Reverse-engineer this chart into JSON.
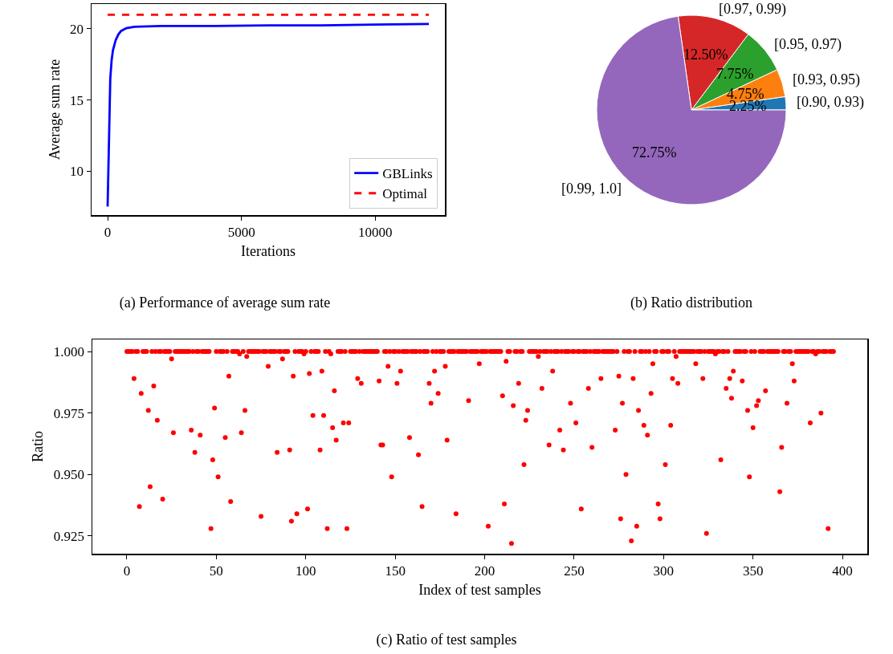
{
  "chart_data": [
    {
      "type": "line",
      "title": "(a) Performance of average sum rate",
      "xlabel": "Iterations",
      "ylabel": "Average sum rate",
      "xlim": [
        -600,
        12600
      ],
      "ylim": [
        6.9,
        21.75
      ],
      "xticks": [
        0,
        5000,
        10000
      ],
      "yticks": [
        10,
        15,
        20
      ],
      "legend": "bottom right",
      "series": [
        {
          "name": "GBLinks",
          "color": "#0000ff",
          "line_style": "solid",
          "x": [
            0,
            50,
            100,
            150,
            200,
            300,
            400,
            500,
            700,
            1000,
            2000,
            4000,
            6000,
            8000,
            10000,
            12000
          ],
          "values": [
            7.5,
            12,
            16.5,
            17.8,
            18.5,
            19.2,
            19.6,
            19.85,
            20.05,
            20.15,
            20.2,
            20.2,
            20.25,
            20.25,
            20.3,
            20.35
          ]
        },
        {
          "name": "Optimal",
          "color": "#ff0000",
          "line_style": "dashed",
          "x": [
            0,
            12000
          ],
          "values": [
            21,
            21
          ]
        }
      ]
    },
    {
      "type": "pie",
      "title": "(b) Ratio distribution",
      "categories": [
        "[0.90, 0.93)",
        "[0.93, 0.95)",
        "[0.95, 0.97)",
        "[0.97, 0.99)",
        "[0.99, 1.0]"
      ],
      "values": [
        2.25,
        4.75,
        7.75,
        12.5,
        72.75
      ],
      "value_labels": [
        "2.25%",
        "4.75%",
        "7.75%",
        "12.50%",
        "72.75%"
      ],
      "colors": [
        "#1f77b4",
        "#ff7f0e",
        "#2ca02c",
        "#d62728",
        "#9467bd"
      ]
    },
    {
      "type": "scatter",
      "title": "(c) Ratio of test samples",
      "xlabel": "Index of test samples",
      "ylabel": "Ratio",
      "xlim": [
        -19.3,
        413.9
      ],
      "ylim": [
        0.9178,
        1.0049
      ],
      "xticks": [
        0,
        50,
        100,
        150,
        200,
        250,
        300,
        350,
        400
      ],
      "yticks": [
        0.925,
        {
          "value": 0.95,
          "label": "0.950"
        },
        0.975,
        {
          "value": 1,
          "label": "1.000"
        }
      ],
      "marker": "circle",
      "color": "#ff0000",
      "x": [
        0,
        1,
        2,
        3,
        4,
        5,
        6,
        7,
        8,
        9,
        10,
        11,
        12,
        13,
        14,
        15,
        16,
        17,
        18,
        19,
        20,
        21,
        22,
        23,
        24,
        25,
        26,
        27,
        28,
        29,
        30,
        31,
        32,
        33,
        34,
        35,
        36,
        37,
        38,
        39,
        40,
        41,
        42,
        43,
        44,
        45,
        46,
        47,
        48,
        49,
        50,
        51,
        52,
        53,
        54,
        55,
        56,
        57,
        58,
        59,
        60,
        61,
        62,
        63,
        64,
        65,
        66,
        67,
        68,
        69,
        70,
        71,
        72,
        73,
        74,
        75,
        76,
        77,
        78,
        79,
        80,
        81,
        82,
        83,
        84,
        85,
        86,
        87,
        88,
        89,
        90,
        91,
        92,
        93,
        94,
        95,
        96,
        97,
        98,
        99,
        100,
        101,
        102,
        103,
        104,
        105,
        106,
        107,
        108,
        109,
        110,
        111,
        112,
        113,
        114,
        115,
        116,
        117,
        118,
        119,
        120,
        121,
        122,
        123,
        124,
        125,
        126,
        127,
        128,
        129,
        130,
        131,
        132,
        133,
        134,
        135,
        136,
        137,
        138,
        139,
        140,
        141,
        142,
        143,
        144,
        145,
        146,
        147,
        148,
        149,
        150,
        151,
        152,
        153,
        154,
        155,
        156,
        157,
        158,
        159,
        160,
        161,
        162,
        163,
        164,
        165,
        166,
        167,
        168,
        169,
        170,
        171,
        172,
        173,
        174,
        175,
        176,
        177,
        178,
        179,
        180,
        181,
        182,
        183,
        184,
        185,
        186,
        187,
        188,
        189,
        190,
        191,
        192,
        193,
        194,
        195,
        196,
        197,
        198,
        199,
        200,
        201,
        202,
        203,
        204,
        205,
        206,
        207,
        208,
        209,
        210,
        211,
        212,
        213,
        214,
        215,
        216,
        217,
        218,
        219,
        220,
        221,
        222,
        223,
        224,
        225,
        226,
        227,
        228,
        229,
        230,
        231,
        232,
        233,
        234,
        235,
        236,
        237,
        238,
        239,
        240,
        241,
        242,
        243,
        244,
        245,
        246,
        247,
        248,
        249,
        250,
        251,
        252,
        253,
        254,
        255,
        256,
        257,
        258,
        259,
        260,
        261,
        262,
        263,
        264,
        265,
        266,
        267,
        268,
        269,
        270,
        271,
        272,
        273,
        274,
        275,
        276,
        277,
        278,
        279,
        280,
        281,
        282,
        283,
        284,
        285,
        286,
        287,
        288,
        289,
        290,
        291,
        292,
        293,
        294,
        295,
        296,
        297,
        298,
        299,
        300,
        301,
        302,
        303,
        304,
        305,
        306,
        307,
        308,
        309,
        310,
        311,
        312,
        313,
        314,
        315,
        316,
        317,
        318,
        319,
        320,
        321,
        322,
        323,
        324,
        325,
        326,
        327,
        328,
        329,
        330,
        331,
        332,
        333,
        334,
        335,
        336,
        337,
        338,
        339,
        340,
        341,
        342,
        343,
        344,
        345,
        346,
        347,
        348,
        349,
        350,
        351,
        352,
        353,
        354,
        355,
        356,
        357,
        358,
        359,
        360,
        361,
        362,
        363,
        364,
        365,
        366,
        367,
        368,
        369,
        370,
        371,
        372,
        373,
        374,
        375,
        376,
        377,
        378,
        379,
        380,
        381,
        382,
        383,
        384,
        385,
        386,
        387,
        388,
        389,
        390,
        391,
        392,
        393,
        394,
        395
      ],
      "values": [
        1,
        1,
        1,
        1,
        0.989,
        1,
        1,
        0.937,
        0.983,
        1,
        1,
        1,
        0.976,
        0.945,
        1,
        0.986,
        1,
        0.972,
        1,
        1,
        0.94,
        1,
        1,
        1,
        1,
        0.997,
        0.967,
        1,
        1,
        1,
        1,
        1,
        1,
        1,
        1,
        1,
        0.968,
        1,
        0.959,
        1,
        1,
        0.966,
        1,
        1,
        1,
        1,
        1,
        0.928,
        0.956,
        0.977,
        1,
        0.949,
        1,
        1,
        1,
        0.965,
        1,
        0.99,
        0.939,
        1,
        1,
        1,
        1,
        0.999,
        0.967,
        1,
        0.976,
        0.998,
        1,
        1,
        1,
        1,
        1,
        1,
        1,
        0.933,
        1,
        1,
        1,
        0.994,
        1,
        1,
        1,
        1,
        0.959,
        1,
        1,
        0.997,
        1,
        1,
        1,
        0.96,
        0.931,
        0.99,
        1,
        0.934,
        1,
        1,
        1,
        0.999,
        1,
        0.936,
        0.991,
        1,
        0.974,
        1,
        1,
        1,
        0.96,
        0.992,
        0.974,
        1,
        0.928,
        1,
        0.999,
        0.969,
        0.984,
        0.964,
        1,
        1,
        1,
        0.971,
        1,
        0.928,
        0.971,
        1,
        1,
        1,
        1,
        0.989,
        1,
        0.987,
        1,
        1,
        1,
        1,
        1,
        1,
        1,
        1,
        1,
        0.988,
        0.962,
        0.962,
        1,
        1,
        0.994,
        1,
        0.949,
        1,
        1,
        0.987,
        1,
        0.992,
        1,
        1,
        1,
        1,
        0.965,
        1,
        1,
        1,
        1,
        0.958,
        1,
        0.937,
        1,
        1,
        1,
        0.987,
        0.979,
        1,
        0.992,
        1,
        0.983,
        1,
        1,
        1,
        0.994,
        0.964,
        1,
        1,
        1,
        1,
        0.934,
        1,
        1,
        1,
        1,
        1,
        1,
        0.98,
        1,
        1,
        1,
        1,
        1,
        0.995,
        1,
        1,
        1,
        1,
        0.929,
        1,
        1,
        1,
        1,
        1,
        1,
        1,
        0.982,
        0.938,
        0.996,
        1,
        1,
        0.922,
        0.978,
        1,
        1,
        0.987,
        1,
        1,
        0.954,
        0.972,
        0.976,
        1,
        1,
        1,
        1,
        1,
        0.998,
        1,
        0.985,
        1,
        1,
        1,
        0.962,
        1,
        0.992,
        1,
        1,
        1,
        0.968,
        1,
        0.96,
        1,
        1,
        1,
        0.979,
        1,
        1,
        0.971,
        1,
        1,
        0.936,
        1,
        1,
        1,
        0.985,
        1,
        0.961,
        1,
        1,
        1,
        1,
        0.989,
        1,
        1,
        1,
        1,
        1,
        1,
        1,
        0.968,
        1,
        0.99,
        0.932,
        0.979,
        1,
        0.95,
        1,
        1,
        0.923,
        0.989,
        1,
        0.929,
        0.976,
        1,
        1,
        0.97,
        1,
        0.966,
        1,
        0.983,
        0.995,
        1,
        1,
        0.938,
        0.932,
        1,
        1,
        0.954,
        1,
        1,
        0.97,
        0.989,
        1,
        0.998,
        0.987,
        1,
        1,
        1,
        1,
        1,
        1,
        1,
        1,
        1,
        0.995,
        1,
        1,
        1,
        0.989,
        1,
        0.926,
        1,
        1,
        1,
        1,
        0.999,
        1,
        1,
        0.956,
        1,
        1,
        0.985,
        1,
        0.989,
        0.981,
        0.992,
        1,
        1,
        1,
        1,
        0.988,
        1,
        1,
        0.976,
        0.949,
        1,
        0.969,
        1,
        0.978,
        0.98,
        1,
        1,
        1,
        0.984,
        1,
        1,
        1,
        1,
        1,
        1,
        1,
        0.943,
        0.961,
        1,
        1,
        0.979,
        1,
        1,
        0.995,
        0.988,
        1,
        1,
        1,
        1,
        1,
        1,
        1,
        1,
        0.971,
        1,
        1,
        0.999,
        1,
        1,
        0.975,
        1,
        1,
        1,
        0.928,
        1,
        1,
        1
      ]
    }
  ]
}
